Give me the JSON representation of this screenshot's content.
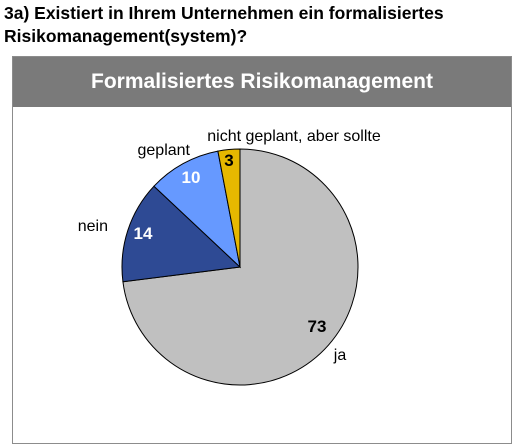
{
  "question": {
    "line1": "3a) Existiert in Ihrem Unternehmen ein formalisiertes",
    "line2": "Risikomanagement(system)?"
  },
  "chart_data": {
    "type": "pie",
    "title": "Formalisiertes Risikomanagement",
    "slices": [
      {
        "label": "ja",
        "value": 73,
        "color": "#c0c0c0"
      },
      {
        "label": "nein",
        "value": 14,
        "color": "#2e4a94"
      },
      {
        "label": "geplant",
        "value": 10,
        "color": "#6699ff"
      },
      {
        "label": "nicht geplant, aber sollte",
        "value": 3,
        "color": "#e6b800"
      }
    ]
  }
}
